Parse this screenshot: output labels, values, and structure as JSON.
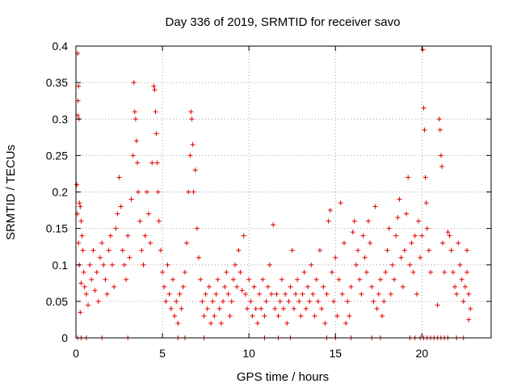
{
  "chart_data": {
    "type": "scatter",
    "title": "Day 336 of 2019, SRMTID for receiver savo",
    "xlabel": "GPS time / hours",
    "ylabel": "SRMTID / TECUs",
    "xlim": [
      0,
      24
    ],
    "ylim": [
      0,
      0.4
    ],
    "xticks": [
      0,
      5,
      10,
      15,
      20
    ],
    "xtick_labels": [
      "0",
      "5",
      "10",
      "15",
      "20"
    ],
    "yticks": [
      0,
      0.05,
      0.1,
      0.15,
      0.2,
      0.25,
      0.3,
      0.35,
      0.4
    ],
    "ytick_labels": [
      "0",
      "0.05",
      "0.1",
      "0.15",
      "0.2",
      "0.25",
      "0.3",
      "0.35",
      "0.4"
    ],
    "grid": true,
    "marker": "+",
    "color": "#e00000",
    "series": [
      {
        "name": "SRMTID",
        "points": [
          [
            0.1,
            0.39
          ],
          [
            0.15,
            0.345
          ],
          [
            0.12,
            0.325
          ],
          [
            0.1,
            0.305
          ],
          [
            0.18,
            0.3
          ],
          [
            0.05,
            0.21
          ],
          [
            0.2,
            0.185
          ],
          [
            0.25,
            0.18
          ],
          [
            0.08,
            0.17
          ],
          [
            0.3,
            0.16
          ],
          [
            0.35,
            0.14
          ],
          [
            0.15,
            0.13
          ],
          [
            0.4,
            0.12
          ],
          [
            0.2,
            0.1
          ],
          [
            0.45,
            0.09
          ],
          [
            0.3,
            0.075
          ],
          [
            0.5,
            0.07
          ],
          [
            0.6,
            0.06
          ],
          [
            0.7,
            0.045
          ],
          [
            0.25,
            0.035
          ],
          [
            0.1,
            0.0
          ],
          [
            0.3,
            0.0
          ],
          [
            0.6,
            0.0
          ],
          [
            0.8,
            0.1
          ],
          [
            0.9,
            0.08
          ],
          [
            1.0,
            0.12
          ],
          [
            1.1,
            0.065
          ],
          [
            1.2,
            0.09
          ],
          [
            1.3,
            0.05
          ],
          [
            1.4,
            0.11
          ],
          [
            1.5,
            0.13
          ],
          [
            1.6,
            0.1
          ],
          [
            1.7,
            0.08
          ],
          [
            1.8,
            0.06
          ],
          [
            1.9,
            0.12
          ],
          [
            2.0,
            0.14
          ],
          [
            2.1,
            0.1
          ],
          [
            2.2,
            0.07
          ],
          [
            2.3,
            0.15
          ],
          [
            2.4,
            0.17
          ],
          [
            2.5,
            0.22
          ],
          [
            2.6,
            0.18
          ],
          [
            2.7,
            0.12
          ],
          [
            2.8,
            0.1
          ],
          [
            2.9,
            0.08
          ],
          [
            3.0,
            0.14
          ],
          [
            3.1,
            0.11
          ],
          [
            3.2,
            0.19
          ],
          [
            3.3,
            0.25
          ],
          [
            3.35,
            0.35
          ],
          [
            3.4,
            0.31
          ],
          [
            3.45,
            0.3
          ],
          [
            3.5,
            0.27
          ],
          [
            3.55,
            0.24
          ],
          [
            3.6,
            0.2
          ],
          [
            3.7,
            0.16
          ],
          [
            3.8,
            0.12
          ],
          [
            3.9,
            0.1
          ],
          [
            4.0,
            0.14
          ],
          [
            4.1,
            0.2
          ],
          [
            4.2,
            0.17
          ],
          [
            4.3,
            0.13
          ],
          [
            4.4,
            0.24
          ],
          [
            4.5,
            0.345
          ],
          [
            4.55,
            0.34
          ],
          [
            4.6,
            0.31
          ],
          [
            4.65,
            0.28
          ],
          [
            4.7,
            0.24
          ],
          [
            4.75,
            0.2
          ],
          [
            4.8,
            0.16
          ],
          [
            4.9,
            0.12
          ],
          [
            5.0,
            0.09
          ],
          [
            5.1,
            0.07
          ],
          [
            5.2,
            0.05
          ],
          [
            5.3,
            0.1
          ],
          [
            5.4,
            0.06
          ],
          [
            5.5,
            0.04
          ],
          [
            5.6,
            0.08
          ],
          [
            5.7,
            0.03
          ],
          [
            5.8,
            0.05
          ],
          [
            5.9,
            0.02
          ],
          [
            6.0,
            0.06
          ],
          [
            6.1,
            0.04
          ],
          [
            6.2,
            0.07
          ],
          [
            6.3,
            0.09
          ],
          [
            6.4,
            0.13
          ],
          [
            6.5,
            0.2
          ],
          [
            6.6,
            0.25
          ],
          [
            6.65,
            0.31
          ],
          [
            6.7,
            0.3
          ],
          [
            6.75,
            0.265
          ],
          [
            6.8,
            0.2
          ],
          [
            6.9,
            0.23
          ],
          [
            7.0,
            0.15
          ],
          [
            7.1,
            0.11
          ],
          [
            7.2,
            0.08
          ],
          [
            7.3,
            0.05
          ],
          [
            7.4,
            0.03
          ],
          [
            7.5,
            0.06
          ],
          [
            7.6,
            0.04
          ],
          [
            7.7,
            0.07
          ],
          [
            7.8,
            0.02
          ],
          [
            7.9,
            0.05
          ],
          [
            8.0,
            0.03
          ],
          [
            8.1,
            0.06
          ],
          [
            8.2,
            0.08
          ],
          [
            8.3,
            0.04
          ],
          [
            8.4,
            0.02
          ],
          [
            8.5,
            0.05
          ],
          [
            8.6,
            0.07
          ],
          [
            8.7,
            0.09
          ],
          [
            8.8,
            0.06
          ],
          [
            8.9,
            0.03
          ],
          [
            9.0,
            0.05
          ],
          [
            9.1,
            0.08
          ],
          [
            9.2,
            0.1
          ],
          [
            9.3,
            0.07
          ],
          [
            9.4,
            0.12
          ],
          [
            9.5,
            0.09
          ],
          [
            9.6,
            0.065
          ],
          [
            9.7,
            0.14
          ],
          [
            9.8,
            0.06
          ],
          [
            9.9,
            0.04
          ],
          [
            10.0,
            0.08
          ],
          [
            10.1,
            0.05
          ],
          [
            10.2,
            0.03
          ],
          [
            10.3,
            0.07
          ],
          [
            10.4,
            0.04
          ],
          [
            10.5,
            0.02
          ],
          [
            10.6,
            0.06
          ],
          [
            10.7,
            0.04
          ],
          [
            10.8,
            0.08
          ],
          [
            10.9,
            0.03
          ],
          [
            11.0,
            0.05
          ],
          [
            11.1,
            0.07
          ],
          [
            11.2,
            0.1
          ],
          [
            11.3,
            0.06
          ],
          [
            11.4,
            0.155
          ],
          [
            11.5,
            0.04
          ],
          [
            11.6,
            0.06
          ],
          [
            11.7,
            0.03
          ],
          [
            11.8,
            0.05
          ],
          [
            11.9,
            0.08
          ],
          [
            12.0,
            0.04
          ],
          [
            12.1,
            0.06
          ],
          [
            12.2,
            0.02
          ],
          [
            12.3,
            0.05
          ],
          [
            12.4,
            0.07
          ],
          [
            12.5,
            0.12
          ],
          [
            12.6,
            0.04
          ],
          [
            12.7,
            0.06
          ],
          [
            12.8,
            0.08
          ],
          [
            12.9,
            0.05
          ],
          [
            13.0,
            0.03
          ],
          [
            13.1,
            0.06
          ],
          [
            13.2,
            0.09
          ],
          [
            13.3,
            0.04
          ],
          [
            13.4,
            0.07
          ],
          [
            13.5,
            0.05
          ],
          [
            13.6,
            0.1
          ],
          [
            13.7,
            0.06
          ],
          [
            13.8,
            0.03
          ],
          [
            13.9,
            0.08
          ],
          [
            14.0,
            0.05
          ],
          [
            14.1,
            0.12
          ],
          [
            14.2,
            0.04
          ],
          [
            14.3,
            0.07
          ],
          [
            14.4,
            0.02
          ],
          [
            14.5,
            0.06
          ],
          [
            14.6,
            0.16
          ],
          [
            14.7,
            0.175
          ],
          [
            14.8,
            0.09
          ],
          [
            14.9,
            0.05
          ],
          [
            15.0,
            0.11
          ],
          [
            15.1,
            0.03
          ],
          [
            15.2,
            0.08
          ],
          [
            15.3,
            0.185
          ],
          [
            15.4,
            0.06
          ],
          [
            15.5,
            0.13
          ],
          [
            15.6,
            0.02
          ],
          [
            15.7,
            0.05
          ],
          [
            15.8,
            0.03
          ],
          [
            15.9,
            0.07
          ],
          [
            16.0,
            0.145
          ],
          [
            16.1,
            0.16
          ],
          [
            16.2,
            0.1
          ],
          [
            16.3,
            0.12
          ],
          [
            16.4,
            0.08
          ],
          [
            16.5,
            0.06
          ],
          [
            16.6,
            0.14
          ],
          [
            16.7,
            0.11
          ],
          [
            16.8,
            0.09
          ],
          [
            16.9,
            0.16
          ],
          [
            17.0,
            0.13
          ],
          [
            17.1,
            0.07
          ],
          [
            17.2,
            0.05
          ],
          [
            17.3,
            0.18
          ],
          [
            17.4,
            0.04
          ],
          [
            17.5,
            0.06
          ],
          [
            17.6,
            0.08
          ],
          [
            17.7,
            0.03
          ],
          [
            17.8,
            0.05
          ],
          [
            17.9,
            0.09
          ],
          [
            18.0,
            0.12
          ],
          [
            18.1,
            0.15
          ],
          [
            18.2,
            0.06
          ],
          [
            18.3,
            0.1
          ],
          [
            18.4,
            0.08
          ],
          [
            18.5,
            0.14
          ],
          [
            18.6,
            0.165
          ],
          [
            18.7,
            0.19
          ],
          [
            18.8,
            0.11
          ],
          [
            18.9,
            0.07
          ],
          [
            19.0,
            0.12
          ],
          [
            19.1,
            0.17
          ],
          [
            19.2,
            0.22
          ],
          [
            19.3,
            0.1
          ],
          [
            19.4,
            0.13
          ],
          [
            19.5,
            0.09
          ],
          [
            19.6,
            0.14
          ],
          [
            19.7,
            0.06
          ],
          [
            19.8,
            0.16
          ],
          [
            19.9,
            0.11
          ],
          [
            20.0,
            0.14
          ],
          [
            20.05,
            0.395
          ],
          [
            20.1,
            0.315
          ],
          [
            20.15,
            0.285
          ],
          [
            20.2,
            0.22
          ],
          [
            20.25,
            0.185
          ],
          [
            20.3,
            0.15
          ],
          [
            20.4,
            0.12
          ],
          [
            20.5,
            0.09
          ],
          [
            20.9,
            0.045
          ],
          [
            21.0,
            0.3
          ],
          [
            21.05,
            0.285
          ],
          [
            21.1,
            0.25
          ],
          [
            21.15,
            0.235
          ],
          [
            21.2,
            0.13
          ],
          [
            21.3,
            0.09
          ],
          [
            21.5,
            0.145
          ],
          [
            21.6,
            0.14
          ],
          [
            21.7,
            0.12
          ],
          [
            21.8,
            0.09
          ],
          [
            21.9,
            0.07
          ],
          [
            22.0,
            0.06
          ],
          [
            22.1,
            0.13
          ],
          [
            22.2,
            0.1
          ],
          [
            22.3,
            0.08
          ],
          [
            22.4,
            0.05
          ],
          [
            22.5,
            0.07
          ],
          [
            22.6,
            0.12
          ],
          [
            22.7,
            0.06
          ],
          [
            22.8,
            0.04
          ],
          [
            22.7,
            0.025
          ],
          [
            22.6,
            0.09
          ],
          [
            1.5,
            0.0
          ],
          [
            3.0,
            0.0
          ],
          [
            5.9,
            0.0
          ],
          [
            6.3,
            0.0
          ],
          [
            7.4,
            0.0
          ],
          [
            10.9,
            0.0
          ],
          [
            11.7,
            0.0
          ],
          [
            12.4,
            0.0
          ],
          [
            14.5,
            0.0
          ],
          [
            15.0,
            0.0
          ],
          [
            15.9,
            0.0
          ],
          [
            17.1,
            0.0
          ],
          [
            17.6,
            0.0
          ],
          [
            19.3,
            0.0
          ],
          [
            19.6,
            0.0
          ],
          [
            19.9,
            0.0
          ],
          [
            20.1,
            0.0
          ],
          [
            20.3,
            0.0
          ],
          [
            20.5,
            0.0
          ],
          [
            20.7,
            0.0
          ],
          [
            20.9,
            0.0
          ],
          [
            21.1,
            0.0
          ],
          [
            21.3,
            0.0
          ],
          [
            21.5,
            0.0
          ],
          [
            22.0,
            0.0
          ],
          [
            22.4,
            0.0
          ]
        ]
      }
    ]
  }
}
